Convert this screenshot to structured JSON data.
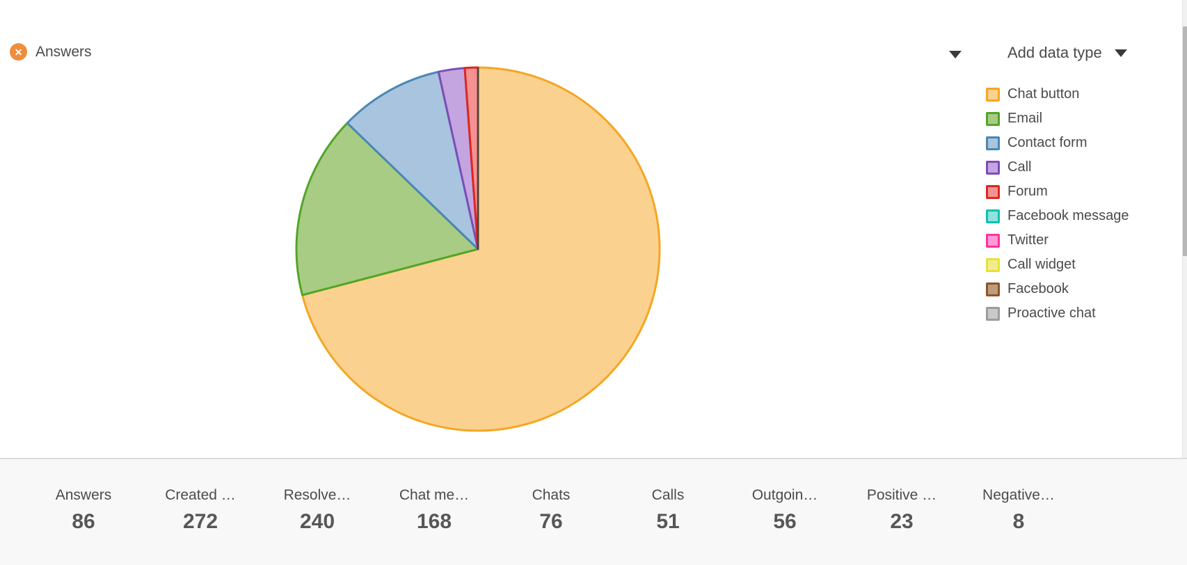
{
  "header": {
    "dataset_chip": {
      "label": "Answers",
      "close_icon_glyph": "✕",
      "chip_color": "#EF8D3C"
    },
    "add_data_type": {
      "label": "Add data type"
    }
  },
  "chart_data": {
    "type": "pie",
    "title": "Answers",
    "total": 86,
    "legend_position": "right",
    "start_angle_deg": 0,
    "direction": "clockwise",
    "slices": [
      {
        "label": "Chat button",
        "value": 61,
        "fill": "#FBD18F",
        "stroke": "#F5A623"
      },
      {
        "label": "Email",
        "value": 14,
        "fill": "#A8CC83",
        "stroke": "#52A526"
      },
      {
        "label": "Contact form",
        "value": 8,
        "fill": "#A8C4DE",
        "stroke": "#4A87B4"
      },
      {
        "label": "Call",
        "value": 2,
        "fill": "#C4A5E0",
        "stroke": "#7C4DB8"
      },
      {
        "label": "Forum",
        "value": 1,
        "fill": "#F29292",
        "stroke": "#E0251E"
      },
      {
        "label": "Facebook message",
        "value": 0,
        "fill": "#8CE4DA",
        "stroke": "#15BEB2"
      },
      {
        "label": "Twitter",
        "value": 0,
        "fill": "#FF9AD4",
        "stroke": "#FF2FA4"
      },
      {
        "label": "Call widget",
        "value": 0,
        "fill": "#F1ED8F",
        "stroke": "#E7E238"
      },
      {
        "label": "Facebook",
        "value": 0,
        "fill": "#BE9C7D",
        "stroke": "#8B5528"
      },
      {
        "label": "Proactive chat",
        "value": 0,
        "fill": "#C9C9C9",
        "stroke": "#9C9C9C"
      }
    ],
    "zero_slices_marker_color": "#45453C"
  },
  "stats": {
    "items": [
      {
        "label": "Answers",
        "value": "86"
      },
      {
        "label": "Created …",
        "value": "272"
      },
      {
        "label": "Resolve…",
        "value": "240"
      },
      {
        "label": "Chat me…",
        "value": "168"
      },
      {
        "label": "Chats",
        "value": "76"
      },
      {
        "label": "Calls",
        "value": "51"
      },
      {
        "label": "Outgoin…",
        "value": "56"
      },
      {
        "label": "Positive …",
        "value": "23"
      },
      {
        "label": "Negative…",
        "value": "8"
      }
    ]
  }
}
